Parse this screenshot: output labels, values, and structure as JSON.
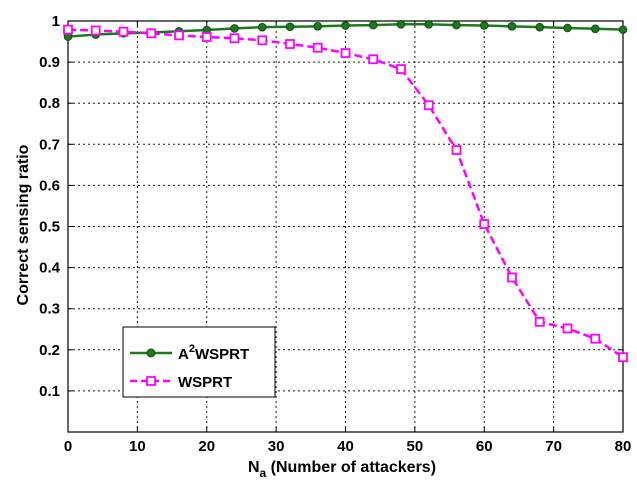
{
  "chart_data": {
    "type": "line",
    "title": "",
    "xlabel": {
      "main": "N",
      "subscript": "a",
      "rest": " (Number of attackers)"
    },
    "ylabel": "Correct sensing ratio",
    "xlim": [
      0,
      80
    ],
    "ylim": [
      0,
      1
    ],
    "xticks": [
      0,
      10,
      20,
      30,
      40,
      50,
      60,
      70,
      80
    ],
    "xtick_labels": [
      "0",
      "10",
      "20",
      "30",
      "40",
      "50",
      "60",
      "70",
      "80"
    ],
    "yticks": [
      0,
      0.1,
      0.2,
      0.3,
      0.4,
      0.5,
      0.6,
      0.7,
      0.8,
      0.9,
      1
    ],
    "ytick_labels": [
      "",
      "0.1",
      "0.2",
      "0.3",
      "0.4",
      "0.5",
      "0.6",
      "0.7",
      "0.8",
      "0.9",
      "1"
    ],
    "grid": true,
    "legend_position": "bottom-left",
    "series": [
      {
        "name": "A2WSPRT",
        "legend_parts": {
          "prefix": "A",
          "superscript": "2",
          "suffix": "WSPRT"
        },
        "color": "#1b7a1b",
        "marker": "circle",
        "line_style": "solid",
        "x": [
          0,
          4,
          8,
          12,
          16,
          20,
          24,
          28,
          32,
          36,
          40,
          44,
          48,
          52,
          56,
          60,
          64,
          68,
          72,
          76,
          80
        ],
        "y": [
          0.962,
          0.967,
          0.97,
          0.972,
          0.975,
          0.978,
          0.982,
          0.985,
          0.986,
          0.987,
          0.989,
          0.99,
          0.992,
          0.992,
          0.99,
          0.989,
          0.987,
          0.985,
          0.983,
          0.981,
          0.979
        ]
      },
      {
        "name": "WSPRT",
        "color": "#ff00ff",
        "marker": "square",
        "line_style": "dashed",
        "x": [
          0,
          4,
          8,
          12,
          16,
          20,
          24,
          28,
          32,
          36,
          40,
          44,
          48,
          52,
          56,
          60,
          64,
          68,
          72,
          76,
          80
        ],
        "y": [
          0.979,
          0.977,
          0.974,
          0.97,
          0.965,
          0.961,
          0.958,
          0.953,
          0.944,
          0.935,
          0.922,
          0.907,
          0.883,
          0.795,
          0.686,
          0.506,
          0.376,
          0.268,
          0.252,
          0.227,
          0.182
        ]
      }
    ]
  }
}
